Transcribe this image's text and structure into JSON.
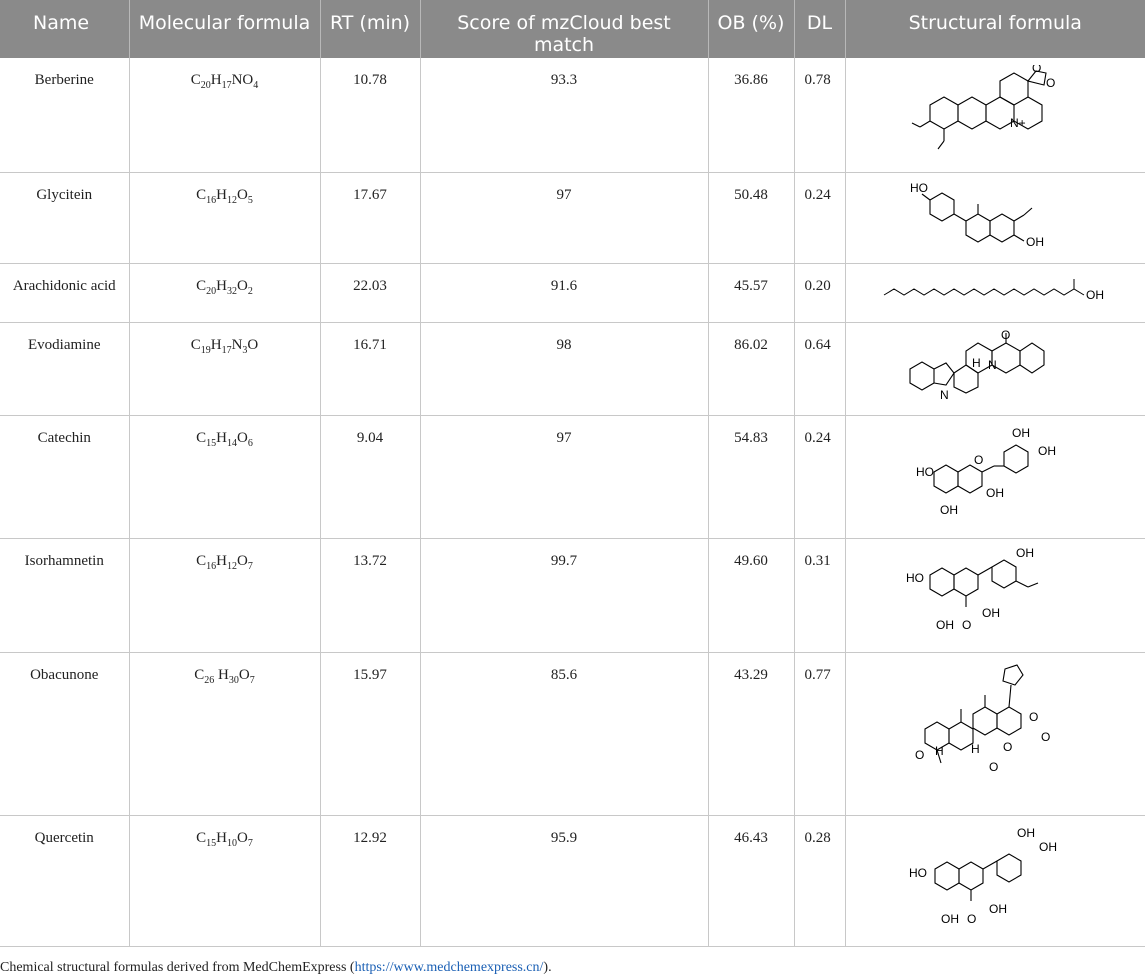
{
  "headers": {
    "name": "Name",
    "formula": "Molecular formula",
    "rt": "RT (min)",
    "score": "Score of mzCloud best match",
    "ob": "OB (%)",
    "dl": "DL",
    "structure": "Structural formula"
  },
  "rows": [
    {
      "name": "Berberine",
      "formula": "C20H17NO4",
      "rt": "10.78",
      "score": "93.3",
      "ob": "36.86",
      "dl": "0.78"
    },
    {
      "name": "Glycitein",
      "formula": "C16H12O5",
      "rt": "17.67",
      "score": "97",
      "ob": "50.48",
      "dl": "0.24"
    },
    {
      "name": "Arachidonic acid",
      "formula": "C20H32O2",
      "rt": "22.03",
      "score": "91.6",
      "ob": "45.57",
      "dl": "0.20"
    },
    {
      "name": "Evodiamine",
      "formula": "C19H17N3O",
      "rt": "16.71",
      "score": "98",
      "ob": "86.02",
      "dl": "0.64"
    },
    {
      "name": "Catechin",
      "formula": "C15H14O6",
      "rt": "9.04",
      "score": "97",
      "ob": "54.83",
      "dl": "0.24"
    },
    {
      "name": "Isorhamnetin",
      "formula": "C16H12O7",
      "rt": "13.72",
      "score": "99.7",
      "ob": "49.60",
      "dl": "0.31"
    },
    {
      "name": "Obacunone",
      "formula": "C26 H30O7",
      "rt": "15.97",
      "score": "85.6",
      "ob": "43.29",
      "dl": "0.77"
    },
    {
      "name": "Quercetin",
      "formula": "C15H10O7",
      "rt": "12.92",
      "score": "95.9",
      "ob": "46.43",
      "dl": "0.28"
    }
  ],
  "footnote": {
    "text_before": "Chemical structural formulas derived from MedChemExpress (",
    "link": "https://www.medchemexpress.cn/",
    "text_after": ")."
  },
  "structure_atom_labels": [
    "O",
    "N+",
    "HO",
    "OH",
    "H",
    "N",
    "O",
    "OH",
    "H",
    "O",
    "O"
  ]
}
